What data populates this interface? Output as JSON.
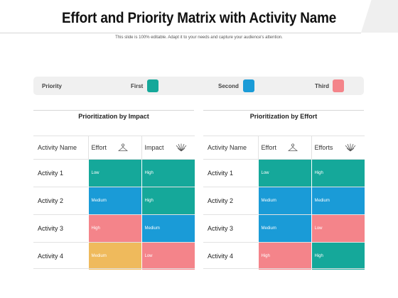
{
  "title": "Effort and Priority Matrix with Activity Name",
  "subtitle": "This slide is 100% editable. Adapt it to your needs and capture your audience's attention.",
  "legend": {
    "label": "Priority",
    "items": [
      {
        "label": "First",
        "color": "#15a89a"
      },
      {
        "label": "Second",
        "color": "#1a9bd7"
      },
      {
        "label": "Third",
        "color": "#f4848a"
      }
    ]
  },
  "colors": {
    "teal": "#15a89a",
    "blue": "#1a9bd7",
    "pink": "#f4848a",
    "yellow": "#efba5c"
  },
  "impact_table": {
    "title": "Prioritization by Impact",
    "headers": [
      "Activity Name",
      "Effort",
      "Impact"
    ],
    "header_icons": [
      "hanger-icon",
      "burst-icon"
    ],
    "rows": [
      {
        "name": "Activity 1",
        "c1": {
          "text": "Low",
          "color": "#15a89a"
        },
        "c2": {
          "text": "High",
          "color": "#15a89a"
        }
      },
      {
        "name": "Activity 2",
        "c1": {
          "text": "Medium",
          "color": "#1a9bd7"
        },
        "c2": {
          "text": "High",
          "color": "#15a89a"
        }
      },
      {
        "name": "Activity 3",
        "c1": {
          "text": "High",
          "color": "#f4848a"
        },
        "c2": {
          "text": "Medium",
          "color": "#1a9bd7"
        }
      },
      {
        "name": "Activity 4",
        "c1": {
          "text": "Medium",
          "color": "#efba5c"
        },
        "c2": {
          "text": "Low",
          "color": "#f4848a"
        }
      }
    ]
  },
  "effort_table": {
    "title": "Prioritization by Effort",
    "headers": [
      "Activity Name",
      "Effort",
      "Efforts"
    ],
    "header_icons": [
      "hanger-icon",
      "burst-icon"
    ],
    "rows": [
      {
        "name": "Activity 1",
        "c1": {
          "text": "Low",
          "color": "#15a89a"
        },
        "c2": {
          "text": "High",
          "color": "#15a89a"
        }
      },
      {
        "name": "Activity 2",
        "c1": {
          "text": "Medium",
          "color": "#1a9bd7"
        },
        "c2": {
          "text": "Medium",
          "color": "#1a9bd7"
        }
      },
      {
        "name": "Activity 3",
        "c1": {
          "text": "Medium",
          "color": "#1a9bd7"
        },
        "c2": {
          "text": "Low",
          "color": "#f4848a"
        }
      },
      {
        "name": "Activity 4",
        "c1": {
          "text": "High",
          "color": "#f4848a"
        },
        "c2": {
          "text": "High",
          "color": "#15a89a"
        }
      }
    ]
  }
}
